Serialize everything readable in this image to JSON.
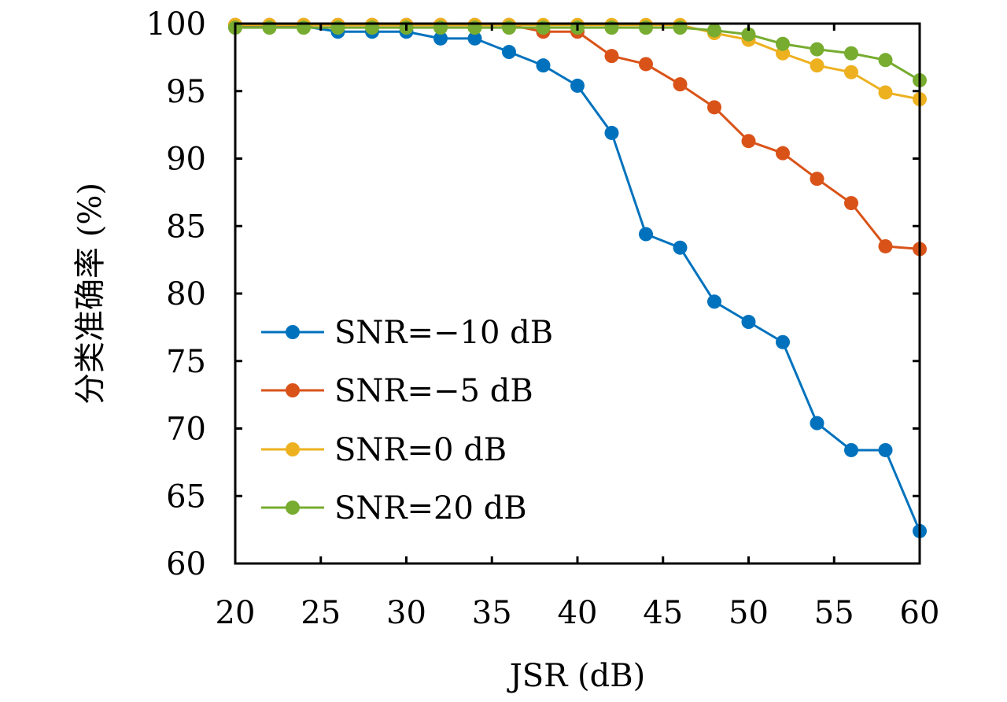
{
  "chart_data": {
    "type": "line",
    "title": "",
    "xlabel": "JSR (dB)",
    "ylabel": "分类准确率 (%)",
    "xlim": [
      20,
      60
    ],
    "ylim": [
      60,
      100
    ],
    "xticks": [
      20,
      25,
      30,
      35,
      40,
      45,
      50,
      55,
      60
    ],
    "yticks": [
      60,
      65,
      70,
      75,
      80,
      85,
      90,
      95,
      100
    ],
    "grid": false,
    "legend_position": "lower-left",
    "x": [
      20,
      22,
      24,
      26,
      28,
      30,
      32,
      34,
      36,
      38,
      40,
      42,
      44,
      46,
      48,
      50,
      52,
      54,
      56,
      58,
      60
    ],
    "series": [
      {
        "name": "SNR=−10 dB",
        "color": "#0072BD",
        "values": [
          99.8,
          99.8,
          99.8,
          99.4,
          99.4,
          99.4,
          98.9,
          98.9,
          97.9,
          96.9,
          95.4,
          91.9,
          84.4,
          83.4,
          79.4,
          77.9,
          76.4,
          70.4,
          68.4,
          68.4,
          62.4
        ]
      },
      {
        "name": "SNR=−5 dB",
        "color": "#D95319",
        "values": [
          99.9,
          99.9,
          99.9,
          99.9,
          99.9,
          99.9,
          99.9,
          99.9,
          99.9,
          99.4,
          99.4,
          97.6,
          97.0,
          95.5,
          93.8,
          91.3,
          90.4,
          88.5,
          86.7,
          83.5,
          83.3
        ]
      },
      {
        "name": "SNR=0 dB",
        "color": "#EDB120",
        "values": [
          99.9,
          99.9,
          99.9,
          99.9,
          99.9,
          99.9,
          99.9,
          99.9,
          99.9,
          99.9,
          99.9,
          99.9,
          99.9,
          99.9,
          99.3,
          98.8,
          97.8,
          96.9,
          96.4,
          94.9,
          94.4
        ]
      },
      {
        "name": "SNR=20 dB",
        "color": "#77AC30",
        "values": [
          99.7,
          99.7,
          99.7,
          99.7,
          99.7,
          99.7,
          99.7,
          99.7,
          99.7,
          99.7,
          99.7,
          99.7,
          99.7,
          99.7,
          99.5,
          99.2,
          98.5,
          98.1,
          97.8,
          97.3,
          95.8
        ]
      }
    ]
  }
}
